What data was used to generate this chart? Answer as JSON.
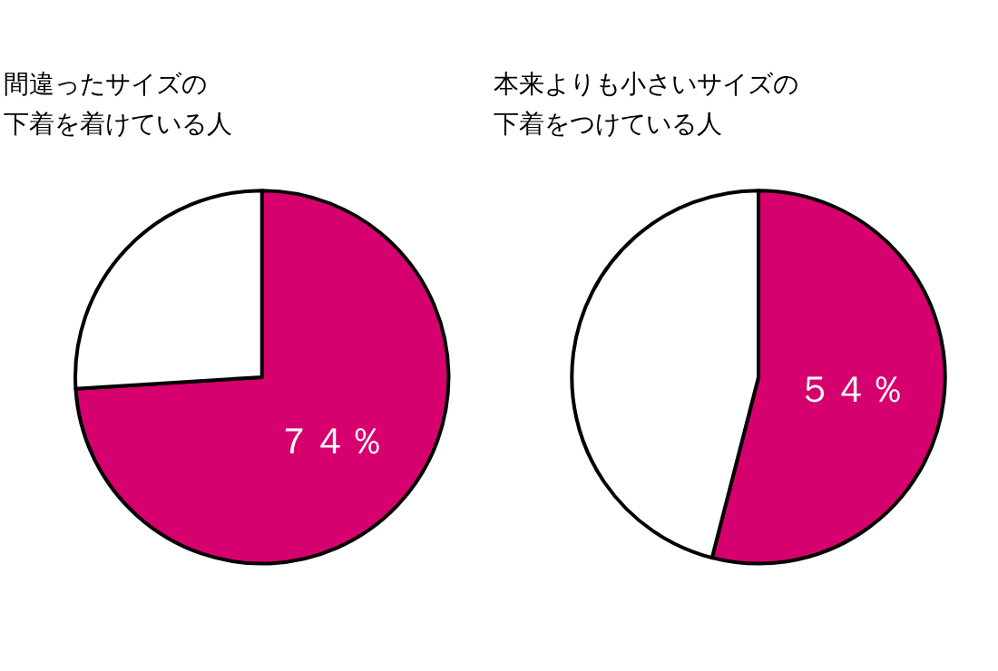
{
  "chart_data": [
    {
      "type": "pie",
      "title": "間違ったサイズの",
      "subtitle": "下着を着けている人",
      "categories": [
        null,
        null
      ],
      "values": [
        74,
        26
      ],
      "colors": [
        "#d6006e",
        "#ffffff"
      ],
      "value_labels": [
        "７４％",
        null
      ]
    },
    {
      "type": "pie",
      "title": "本来よりも小さいサイズの",
      "subtitle": "下着をつけている人",
      "categories": [
        null,
        null
      ],
      "values": [
        54,
        46
      ],
      "colors": [
        "#d6006e",
        "#ffffff"
      ],
      "value_labels": [
        "５４％",
        null
      ]
    }
  ]
}
